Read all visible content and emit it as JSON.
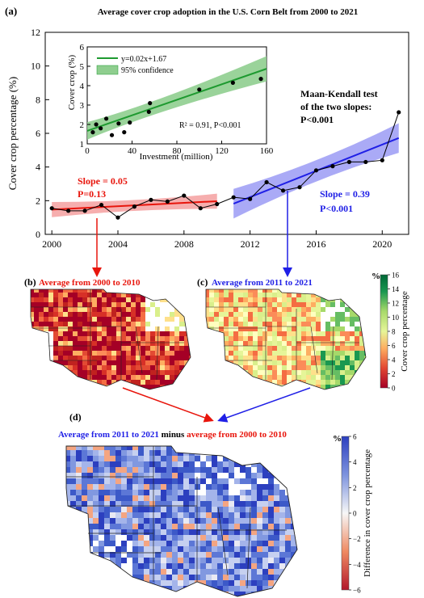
{
  "panel_labels": {
    "a": "(a)",
    "b": "(b)",
    "c": "(c)",
    "d": "(d)"
  },
  "colors": {
    "early": "#e8150c",
    "late": "#1f1fe6",
    "inset_green": "#1e9a30",
    "ci_green": "#8fce8f"
  },
  "chart_data": [
    {
      "type": "line",
      "title": "Average cover crop adoption in the U.S. Corn Belt from 2000 to 2021",
      "xlabel": "",
      "ylabel": "Cover crop percentage (%)",
      "xlim": [
        1999.6,
        2021.6
      ],
      "ylim": [
        0,
        12
      ],
      "xticks": [
        2000,
        2004,
        2008,
        2012,
        2016,
        2020
      ],
      "yticks": [
        0,
        2,
        4,
        6,
        8,
        10,
        12
      ],
      "x": [
        2000,
        2001,
        2002,
        2003,
        2004,
        2005,
        2006,
        2007,
        2008,
        2009,
        2010,
        2011,
        2012,
        2013,
        2014,
        2015,
        2016,
        2017,
        2018,
        2019,
        2020,
        2021
      ],
      "values": [
        1.55,
        1.4,
        1.4,
        1.75,
        1.0,
        1.65,
        2.05,
        1.95,
        2.3,
        1.55,
        1.8,
        2.2,
        2.1,
        3.1,
        2.6,
        2.8,
        3.8,
        4.05,
        4.3,
        4.3,
        4.4,
        7.25
      ],
      "fits": [
        {
          "x": [
            2000,
            2010
          ],
          "y": [
            1.47,
            1.97
          ],
          "color": "#e8150c"
        },
        {
          "x": [
            2011,
            2021
          ],
          "y": [
            1.82,
            5.72
          ],
          "color": "#1f1fe6"
        }
      ],
      "annotations": {
        "early_slope": "Slope = 0.05",
        "early_p": "P=0.13",
        "late_slope": "Slope = 0.39",
        "late_p": "P<0.001",
        "mk_line1": "Maan-Kendall test",
        "mk_line2": "of the two slopes:",
        "mk_line3": "P<0.001"
      }
    },
    {
      "type": "scatter",
      "title": "",
      "xlabel": "Investment (million)",
      "ylabel": "Cover crop (%)",
      "xlim": [
        0,
        160
      ],
      "ylim": [
        1,
        6
      ],
      "xticks": [
        0,
        40,
        80,
        120,
        160
      ],
      "yticks": [
        1,
        2,
        3,
        4,
        5,
        6
      ],
      "x": [
        5,
        8,
        12,
        17,
        22,
        28,
        33,
        38,
        55,
        56,
        100,
        130,
        155
      ],
      "values": [
        1.6,
        2.0,
        1.8,
        2.3,
        1.45,
        2.05,
        1.6,
        2.1,
        2.65,
        3.1,
        3.8,
        4.15,
        4.35
      ],
      "fit": {
        "slope": 0.02,
        "intercept": 1.67
      },
      "legend": [
        "y=0.02x+1.67",
        "95% confidence"
      ],
      "stats_text": "R² = 0.91, P<0.001"
    }
  ],
  "maps": {
    "b_title": "Average from 2000 to 2010",
    "c_title": "Average from 2011 to 2021",
    "d_title_part1": "Average from 2011 to 2021",
    "d_title_part2": " minus ",
    "d_title_part3": "average from 2000 to 2010"
  },
  "colorbar_top": {
    "unit": "%",
    "label": "Cover crop percentage",
    "ticks": [
      "16",
      "14",
      "12",
      "10",
      "8",
      "6",
      "4",
      "2",
      "0"
    ]
  },
  "colorbar_bottom": {
    "unit": "%",
    "label": "Difference in cover crop percentage",
    "ticks": [
      "6",
      "4",
      "2",
      "0",
      "−2",
      "−4",
      "−6"
    ]
  }
}
